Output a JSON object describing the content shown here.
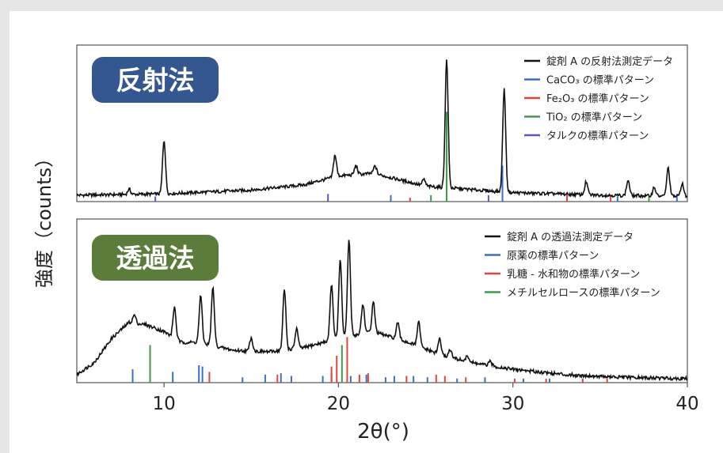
{
  "chart_data": {
    "type": "line",
    "xlabel": "2θ(°)",
    "ylabel": "強度（counts）",
    "xlim": [
      5,
      40
    ],
    "x_ticks": [
      10,
      20,
      30,
      40
    ],
    "panels": [
      {
        "badge": "反射法",
        "badge_color": "#34578f",
        "series": [
          {
            "name": "錠剤 A の反射法測定データ",
            "color": "#111111",
            "kind": "pattern",
            "baseline": [
              [
                5,
                0.05
              ],
              [
                10,
                0.06
              ],
              [
                15,
                0.09
              ],
              [
                18,
                0.13
              ],
              [
                20,
                0.2
              ],
              [
                22,
                0.22
              ],
              [
                25,
                0.12
              ],
              [
                30,
                0.07
              ],
              [
                35,
                0.05
              ],
              [
                40,
                0.04
              ]
            ],
            "peaks": [
              [
                8.0,
                0.04
              ],
              [
                10.0,
                0.42
              ],
              [
                19.8,
                0.17
              ],
              [
                21.0,
                0.07
              ],
              [
                22.1,
                0.06
              ],
              [
                24.9,
                0.05
              ],
              [
                26.2,
                1.0
              ],
              [
                29.5,
                0.8
              ],
              [
                34.2,
                0.1
              ],
              [
                36.6,
                0.12
              ],
              [
                38.1,
                0.07
              ],
              [
                38.9,
                0.22
              ],
              [
                39.7,
                0.1
              ]
            ]
          },
          {
            "name": "CaCO₃ の標準パターン",
            "color": "#3a6fc4",
            "kind": "sticks",
            "sticks": [
              [
                23.0,
                0.05
              ],
              [
                29.4,
                0.28
              ],
              [
                36.0,
                0.04
              ],
              [
                39.4,
                0.06
              ]
            ]
          },
          {
            "name": "Fe₂O₃ の標準パターン",
            "color": "#e0463e",
            "kind": "sticks",
            "sticks": [
              [
                24.1,
                0.03
              ],
              [
                33.1,
                0.06
              ],
              [
                35.6,
                0.05
              ]
            ]
          },
          {
            "name": "TiO₂ の標準パターン",
            "color": "#3f9a4c",
            "kind": "sticks",
            "sticks": [
              [
                25.3,
                0.05
              ],
              [
                26.2,
                0.7
              ],
              [
                37.8,
                0.04
              ]
            ]
          },
          {
            "name": "タルクの標準パターン",
            "color": "#6a4fc2",
            "kind": "sticks",
            "sticks": [
              [
                9.5,
                0.04
              ],
              [
                19.4,
                0.06
              ],
              [
                28.6,
                0.05
              ]
            ]
          }
        ]
      },
      {
        "badge": "透過法",
        "badge_color": "#5a7d3c",
        "series": [
          {
            "name": "錠剤 A の透過法測定データ",
            "color": "#111111",
            "kind": "pattern",
            "baseline": [
              [
                5,
                0.06
              ],
              [
                6,
                0.15
              ],
              [
                7,
                0.33
              ],
              [
                8,
                0.45
              ],
              [
                9,
                0.43
              ],
              [
                10,
                0.38
              ],
              [
                11,
                0.3
              ],
              [
                12,
                0.3
              ],
              [
                13,
                0.27
              ],
              [
                14,
                0.24
              ],
              [
                16,
                0.23
              ],
              [
                18,
                0.26
              ],
              [
                20,
                0.33
              ],
              [
                22,
                0.38
              ],
              [
                24,
                0.3
              ],
              [
                26,
                0.2
              ],
              [
                28,
                0.14
              ],
              [
                30,
                0.1
              ],
              [
                33,
                0.06
              ],
              [
                36,
                0.04
              ],
              [
                40,
                0.03
              ]
            ],
            "peaks": [
              [
                8.3,
                0.06
              ],
              [
                10.6,
                0.23
              ],
              [
                12.1,
                0.35
              ],
              [
                12.8,
                0.43
              ],
              [
                15.0,
                0.1
              ],
              [
                16.9,
                0.45
              ],
              [
                17.6,
                0.15
              ],
              [
                19.6,
                0.42
              ],
              [
                20.1,
                0.58
              ],
              [
                20.6,
                0.72
              ],
              [
                21.4,
                0.22
              ],
              [
                22.0,
                0.22
              ],
              [
                23.4,
                0.12
              ],
              [
                24.6,
                0.18
              ],
              [
                25.8,
                0.12
              ],
              [
                26.4,
                0.06
              ],
              [
                27.4,
                0.04
              ],
              [
                28.7,
                0.03
              ]
            ]
          },
          {
            "name": "原薬の標準パターン",
            "color": "#3a6fc4",
            "kind": "sticks",
            "sticks": [
              [
                8.2,
                0.1
              ],
              [
                10.5,
                0.08
              ],
              [
                12.0,
                0.13
              ],
              [
                12.2,
                0.12
              ],
              [
                14.5,
                0.04
              ],
              [
                15.8,
                0.06
              ],
              [
                16.7,
                0.07
              ],
              [
                17.3,
                0.05
              ],
              [
                19.1,
                0.05
              ],
              [
                19.6,
                0.07
              ],
              [
                20.7,
                0.05
              ],
              [
                21.6,
                0.06
              ],
              [
                22.7,
                0.04
              ],
              [
                23.2,
                0.05
              ],
              [
                24.3,
                0.05
              ],
              [
                25.1,
                0.04
              ],
              [
                26.8,
                0.03
              ],
              [
                28.4,
                0.04
              ],
              [
                30.6,
                0.03
              ],
              [
                32.1,
                0.03
              ]
            ]
          },
          {
            "name": "乳糖 - 水和物の標準パターン",
            "color": "#e0463e",
            "kind": "sticks",
            "sticks": [
              [
                12.6,
                0.08
              ],
              [
                16.5,
                0.06
              ],
              [
                19.6,
                0.12
              ],
              [
                19.9,
                0.2
              ],
              [
                20.5,
                0.34
              ],
              [
                21.2,
                0.06
              ],
              [
                21.7,
                0.07
              ],
              [
                23.9,
                0.05
              ],
              [
                25.6,
                0.06
              ],
              [
                26.1,
                0.05
              ],
              [
                27.3,
                0.04
              ],
              [
                30.1,
                0.03
              ],
              [
                31.9,
                0.03
              ],
              [
                34.0,
                0.03
              ],
              [
                35.4,
                0.03
              ]
            ]
          },
          {
            "name": "メチルセルロースの標準パターン",
            "color": "#3f9a4c",
            "kind": "sticks",
            "sticks": [
              [
                9.2,
                0.28
              ],
              [
                20.2,
                0.28
              ]
            ]
          }
        ]
      }
    ]
  }
}
